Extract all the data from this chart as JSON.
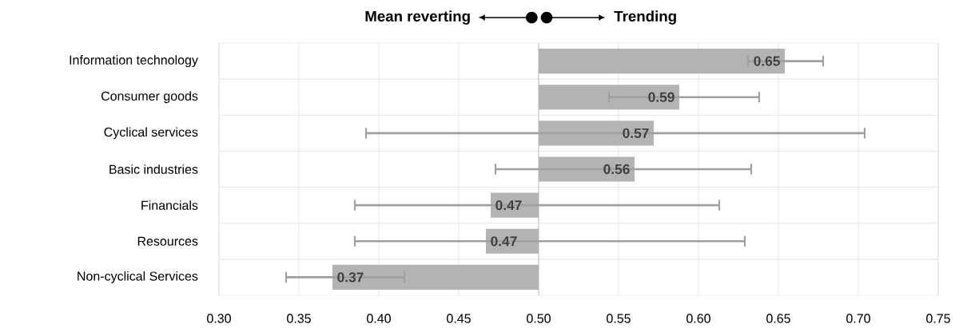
{
  "chart_data": {
    "type": "bar",
    "orientation": "horizontal",
    "annotations": [
      "Mean reverting",
      "Trending"
    ],
    "categories": [
      "Information technology",
      "Consumer goods",
      "Cyclical services",
      "Basic industries",
      "Financials",
      "Resources",
      "Non-cyclical Services"
    ],
    "values": [
      0.154,
      0.088,
      0.072,
      0.06,
      -0.03,
      -0.033,
      -0.129
    ],
    "base": [
      0.5,
      0.5,
      0.5,
      0.5,
      0.5,
      0.5,
      0.5
    ],
    "value_labels": [
      "0.65",
      "0.59",
      "0.57",
      "0.56",
      "0.47",
      "0.47",
      "0.37"
    ],
    "errors": [
      [
        0.631,
        0.678
      ],
      [
        0.544,
        0.638
      ],
      [
        0.392,
        0.704
      ],
      [
        0.473,
        0.633
      ],
      [
        0.385,
        0.613
      ],
      [
        0.385,
        0.629
      ],
      [
        0.342,
        0.416
      ]
    ],
    "color": "#b3b3b3",
    "xlim": [
      0.3,
      0.75
    ],
    "xticks": [
      {
        "value": 0.3,
        "label": "0.30"
      },
      {
        "value": 0.35,
        "label": "0.35"
      },
      {
        "value": 0.4,
        "label": "0.40"
      },
      {
        "value": 0.45,
        "label": "0.45"
      },
      {
        "value": 0.5,
        "label": "0.50"
      },
      {
        "value": 0.55,
        "label": "0.55"
      },
      {
        "value": 0.6,
        "label": "0.60"
      },
      {
        "value": 0.65,
        "label": "0.65"
      },
      {
        "value": 0.7,
        "label": "0.70"
      },
      {
        "value": 0.75,
        "label": "0.75"
      }
    ],
    "grid": true,
    "ref_lines": [
      {
        "axis": "x",
        "value": 0.5,
        "color": "#d0d0d0"
      }
    ]
  }
}
